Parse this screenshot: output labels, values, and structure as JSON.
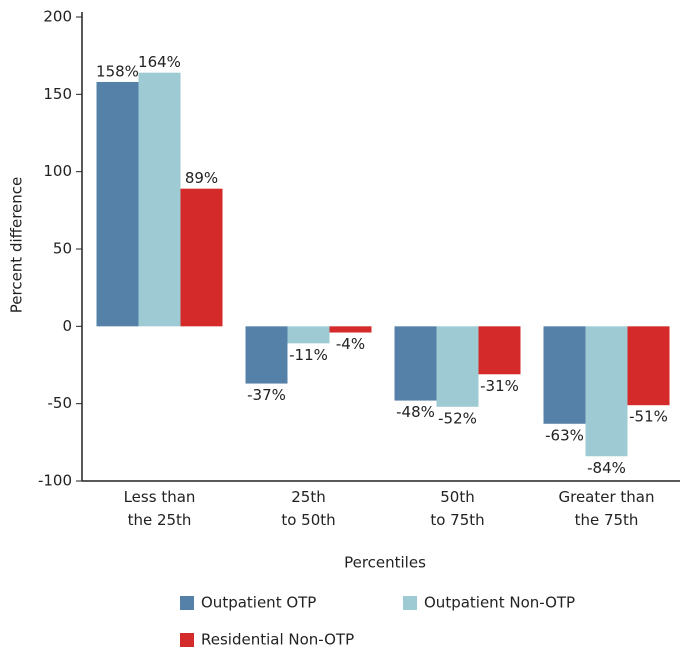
{
  "chart_data": {
    "type": "bar",
    "categories": [
      "Less than\nthe 25th",
      "25th\nto 50th",
      "50th\nto 75th",
      "Greater than\nthe 75th"
    ],
    "series": [
      {
        "name": "Outpatient OTP",
        "color": "#5581a9",
        "values": [
          158,
          -37,
          -48,
          -63
        ],
        "value_labels": [
          "158%",
          "-37%",
          "-48%",
          "-63%"
        ]
      },
      {
        "name": "Outpatient Non-OTP",
        "color": "#9ecad3",
        "values": [
          164,
          -11,
          -52,
          -84
        ],
        "value_labels": [
          "164%",
          "-11%",
          "-52%",
          "-84%"
        ]
      },
      {
        "name": "Residential Non-OTP",
        "color": "#d42a2a",
        "values": [
          89,
          -4,
          -31,
          -51
        ],
        "value_labels": [
          "89%",
          "-4%",
          "-31%",
          "-51%"
        ]
      }
    ],
    "x_label": "Percentiles",
    "y_label": "Percent difference",
    "ylim": [
      -100,
      200
    ],
    "yticks": [
      -100,
      -50,
      0,
      50,
      100,
      150,
      200
    ]
  }
}
